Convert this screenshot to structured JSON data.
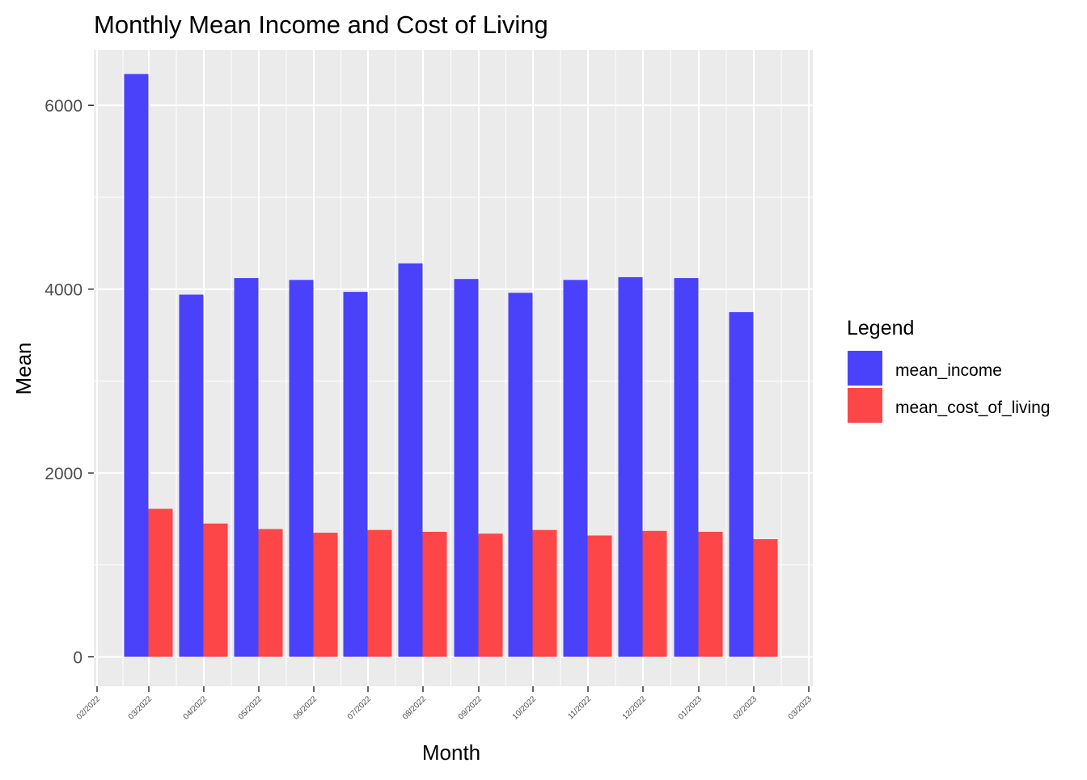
{
  "chart_data": {
    "type": "bar",
    "title": "Monthly Mean Income and Cost of Living",
    "xlabel": "Month",
    "ylabel": "Mean",
    "ylim": [
      -320,
      6600
    ],
    "y_ticks": [
      0,
      2000,
      4000,
      6000
    ],
    "x_tick_labels": [
      "02/2022",
      "03/2022",
      "04/2022",
      "05/2022",
      "06/2022",
      "07/2022",
      "08/2022",
      "09/2022",
      "10/2022",
      "11/2022",
      "12/2022",
      "01/2023",
      "02/2023",
      "03/2023"
    ],
    "categories": [
      "03/2022",
      "04/2022",
      "05/2022",
      "06/2022",
      "07/2022",
      "08/2022",
      "09/2022",
      "10/2022",
      "11/2022",
      "12/2022",
      "01/2023",
      "02/2023"
    ],
    "series": [
      {
        "name": "mean_income",
        "color": "#4a42fb",
        "values": [
          6340,
          3940,
          4120,
          4100,
          3970,
          4280,
          4110,
          3960,
          4100,
          4130,
          4120,
          3750
        ]
      },
      {
        "name": "mean_cost_of_living",
        "color": "#fc4648",
        "values": [
          1610,
          1450,
          1390,
          1350,
          1380,
          1360,
          1340,
          1380,
          1320,
          1370,
          1360,
          1280
        ]
      }
    ],
    "grid": true,
    "panel_background": "#ebebeb",
    "legend": {
      "title": "Legend",
      "position": "right"
    }
  }
}
